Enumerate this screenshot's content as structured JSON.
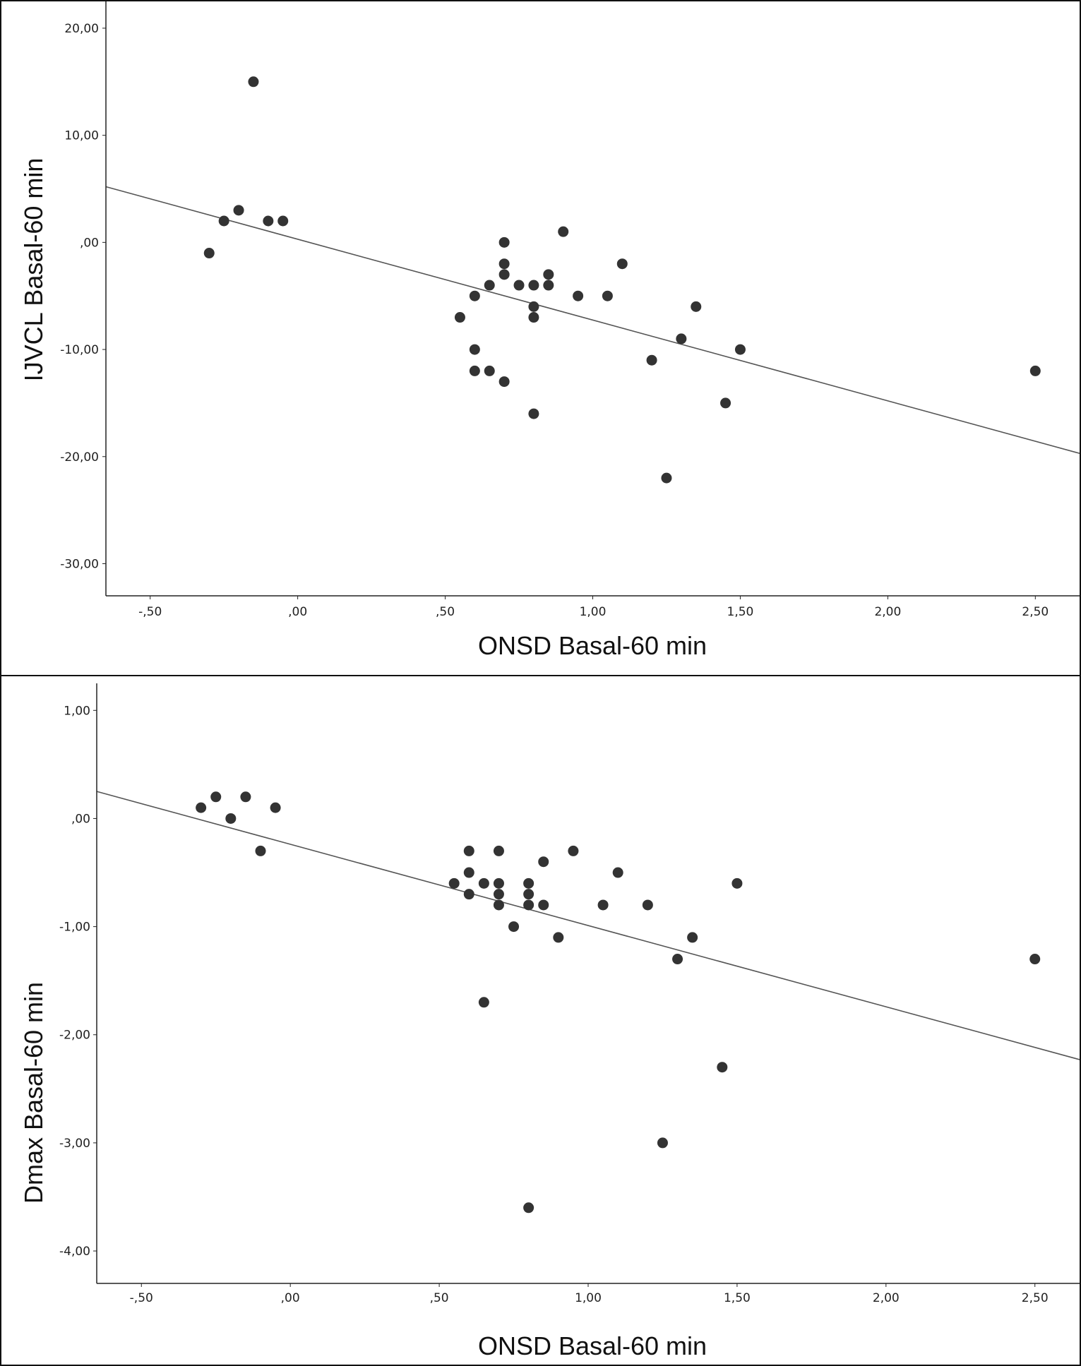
{
  "chart_data": [
    {
      "type": "scatter",
      "xlabel": "ONSD Basal-60 min",
      "ylabel": "IJVCL Basal-60 min",
      "xlim": [
        -0.65,
        2.65
      ],
      "ylim": [
        -33,
        22.5
      ],
      "xticks": [
        -0.5,
        0.0,
        0.5,
        1.0,
        1.5,
        2.0,
        2.5
      ],
      "xtick_labels": [
        "-,50",
        ",00",
        ",50",
        "1,00",
        "1,50",
        "2,00",
        "2,50"
      ],
      "yticks": [
        20,
        10,
        0,
        -10,
        -20,
        -30
      ],
      "ytick_labels": [
        "20,00",
        "10,00",
        ",00",
        "-10,00",
        "-20,00",
        "-30,00"
      ],
      "points": [
        {
          "x": -0.15,
          "y": 15
        },
        {
          "x": -0.3,
          "y": -1
        },
        {
          "x": -0.25,
          "y": 2
        },
        {
          "x": -0.2,
          "y": 3
        },
        {
          "x": -0.1,
          "y": 2
        },
        {
          "x": -0.05,
          "y": 2
        },
        {
          "x": 0.55,
          "y": -7
        },
        {
          "x": 0.6,
          "y": -5
        },
        {
          "x": 0.6,
          "y": -10
        },
        {
          "x": 0.6,
          "y": -12
        },
        {
          "x": 0.65,
          "y": -4
        },
        {
          "x": 0.65,
          "y": -12
        },
        {
          "x": 0.7,
          "y": 0
        },
        {
          "x": 0.7,
          "y": -2
        },
        {
          "x": 0.7,
          "y": -3
        },
        {
          "x": 0.7,
          "y": -13
        },
        {
          "x": 0.75,
          "y": -4
        },
        {
          "x": 0.8,
          "y": -4
        },
        {
          "x": 0.8,
          "y": -6
        },
        {
          "x": 0.8,
          "y": -7
        },
        {
          "x": 0.8,
          "y": -16
        },
        {
          "x": 0.85,
          "y": -3
        },
        {
          "x": 0.85,
          "y": -4
        },
        {
          "x": 0.9,
          "y": 1
        },
        {
          "x": 0.95,
          "y": -5
        },
        {
          "x": 1.05,
          "y": -5
        },
        {
          "x": 1.1,
          "y": -2
        },
        {
          "x": 1.2,
          "y": -11
        },
        {
          "x": 1.25,
          "y": -22
        },
        {
          "x": 1.3,
          "y": -9
        },
        {
          "x": 1.35,
          "y": -6
        },
        {
          "x": 1.45,
          "y": -15
        },
        {
          "x": 1.5,
          "y": -10
        },
        {
          "x": 2.5,
          "y": -12
        }
      ],
      "fit_line": {
        "x": [
          -0.65,
          2.65
        ],
        "y": [
          5.2,
          -19.7
        ]
      }
    },
    {
      "type": "scatter",
      "xlabel": "ONSD Basal-60 min",
      "ylabel": "Dmax Basal-60 min",
      "xlim": [
        -0.65,
        2.65
      ],
      "ylim": [
        -4.3,
        1.25
      ],
      "xticks": [
        -0.5,
        0.0,
        0.5,
        1.0,
        1.5,
        2.0,
        2.5
      ],
      "xtick_labels": [
        "-,50",
        ",00",
        ",50",
        "1,00",
        "1,50",
        "2,00",
        "2,50"
      ],
      "yticks": [
        1,
        0,
        -1,
        -2,
        -3,
        -4
      ],
      "ytick_labels": [
        "1,00",
        ",00",
        "-1,00",
        "-2,00",
        "-3,00",
        "-4,00"
      ],
      "points": [
        {
          "x": -0.3,
          "y": 0.1
        },
        {
          "x": -0.25,
          "y": 0.2
        },
        {
          "x": -0.2,
          "y": 0.0
        },
        {
          "x": -0.15,
          "y": 0.2
        },
        {
          "x": -0.1,
          "y": -0.3
        },
        {
          "x": -0.05,
          "y": 0.1
        },
        {
          "x": 0.55,
          "y": -0.6
        },
        {
          "x": 0.6,
          "y": -0.3
        },
        {
          "x": 0.6,
          "y": -0.5
        },
        {
          "x": 0.6,
          "y": -0.7
        },
        {
          "x": 0.65,
          "y": -0.6
        },
        {
          "x": 0.65,
          "y": -1.7
        },
        {
          "x": 0.7,
          "y": -0.3
        },
        {
          "x": 0.7,
          "y": -0.6
        },
        {
          "x": 0.7,
          "y": -0.7
        },
        {
          "x": 0.7,
          "y": -0.8
        },
        {
          "x": 0.75,
          "y": -1.0
        },
        {
          "x": 0.8,
          "y": -0.6
        },
        {
          "x": 0.8,
          "y": -0.7
        },
        {
          "x": 0.8,
          "y": -0.8
        },
        {
          "x": 0.8,
          "y": -3.6
        },
        {
          "x": 0.85,
          "y": -0.4
        },
        {
          "x": 0.85,
          "y": -0.8
        },
        {
          "x": 0.9,
          "y": -1.1
        },
        {
          "x": 0.95,
          "y": -0.3
        },
        {
          "x": 1.05,
          "y": -0.8
        },
        {
          "x": 1.1,
          "y": -0.5
        },
        {
          "x": 1.2,
          "y": -0.8
        },
        {
          "x": 1.25,
          "y": -3.0
        },
        {
          "x": 1.3,
          "y": -1.3
        },
        {
          "x": 1.35,
          "y": -1.1
        },
        {
          "x": 1.45,
          "y": -2.3
        },
        {
          "x": 1.5,
          "y": -0.6
        },
        {
          "x": 2.5,
          "y": -1.3
        }
      ],
      "fit_line": {
        "x": [
          -0.65,
          2.65
        ],
        "y": [
          0.25,
          -2.23
        ]
      }
    }
  ]
}
